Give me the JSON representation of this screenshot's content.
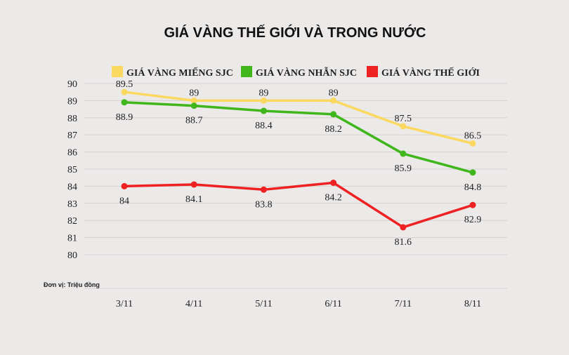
{
  "chart_data": {
    "type": "line",
    "title": "GIÁ VÀNG THẾ GIỚI VÀ TRONG NƯỚC",
    "unit_note": "Đơn vị: Triệu đồng",
    "categories": [
      "3/11",
      "4/11",
      "5/11",
      "6/11",
      "7/11",
      "8/11"
    ],
    "ylim": [
      80,
      90
    ],
    "yticks": [
      80,
      81,
      82,
      83,
      84,
      85,
      86,
      87,
      88,
      89,
      90
    ],
    "grid": true,
    "legend_position": "top",
    "series": [
      {
        "name": "GIÁ VÀNG MIẾNG SJC",
        "color": "#fbd961",
        "values": [
          89.5,
          89,
          89,
          89,
          87.5,
          86.5
        ],
        "label_position": "above"
      },
      {
        "name": "GIÁ VÀNG NHẪN SJC",
        "color": "#3fb61b",
        "values": [
          88.9,
          88.7,
          88.4,
          88.2,
          85.9,
          84.8
        ],
        "label_position": "below"
      },
      {
        "name": "GIÁ VÀNG THẾ GIỚI",
        "color": "#ee2222",
        "values": [
          84,
          84.1,
          83.8,
          84.2,
          81.6,
          82.9
        ],
        "label_position": "below"
      }
    ]
  }
}
